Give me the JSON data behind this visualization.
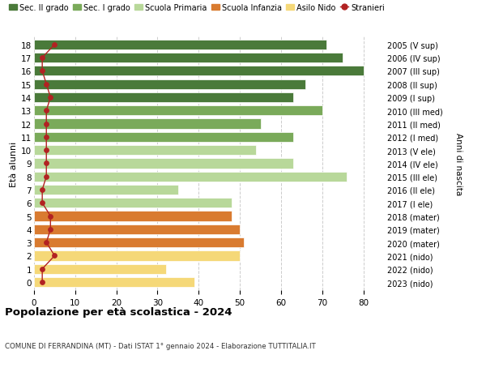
{
  "ages": [
    18,
    17,
    16,
    15,
    14,
    13,
    12,
    11,
    10,
    9,
    8,
    7,
    6,
    5,
    4,
    3,
    2,
    1,
    0
  ],
  "right_labels": [
    "2005 (V sup)",
    "2006 (IV sup)",
    "2007 (III sup)",
    "2008 (II sup)",
    "2009 (I sup)",
    "2010 (III med)",
    "2011 (II med)",
    "2012 (I med)",
    "2013 (V ele)",
    "2014 (IV ele)",
    "2015 (III ele)",
    "2016 (II ele)",
    "2017 (I ele)",
    "2018 (mater)",
    "2019 (mater)",
    "2020 (mater)",
    "2021 (nido)",
    "2022 (nido)",
    "2023 (nido)"
  ],
  "bar_values": [
    71,
    75,
    80,
    66,
    63,
    70,
    55,
    63,
    54,
    63,
    76,
    35,
    48,
    48,
    50,
    51,
    50,
    32,
    39
  ],
  "stranieri_values": [
    5,
    2,
    2,
    3,
    4,
    3,
    3,
    3,
    3,
    3,
    3,
    2,
    2,
    4,
    4,
    3,
    5,
    2,
    2
  ],
  "bar_colors": [
    "#4a7a3a",
    "#4a7a3a",
    "#4a7a3a",
    "#4a7a3a",
    "#4a7a3a",
    "#7aaa5a",
    "#7aaa5a",
    "#7aaa5a",
    "#b8d89a",
    "#b8d89a",
    "#b8d89a",
    "#b8d89a",
    "#b8d89a",
    "#d97b30",
    "#d97b30",
    "#d97b30",
    "#f5d878",
    "#f5d878",
    "#f5d878"
  ],
  "color_sec2": "#4a7a3a",
  "color_sec1": "#7aaa5a",
  "color_primaria": "#b8d89a",
  "color_infanzia": "#d97b30",
  "color_nido": "#f5d878",
  "color_stranieri": "#b22222",
  "title": "Popolazione per età scolastica - 2024",
  "subtitle": "COMUNE DI FERRANDINA (MT) - Dati ISTAT 1° gennaio 2024 - Elaborazione TUTTITALIA.IT",
  "ylabel_left": "Età alunni",
  "ylabel_right": "Anni di nascita",
  "legend_labels": [
    "Sec. II grado",
    "Sec. I grado",
    "Scuola Primaria",
    "Scuola Infanzia",
    "Asilo Nido",
    "Stranieri"
  ],
  "xlim": [
    0,
    85
  ],
  "xticks": [
    0,
    10,
    20,
    30,
    40,
    50,
    60,
    70,
    80
  ],
  "background_color": "#ffffff",
  "grid_color": "#cccccc"
}
